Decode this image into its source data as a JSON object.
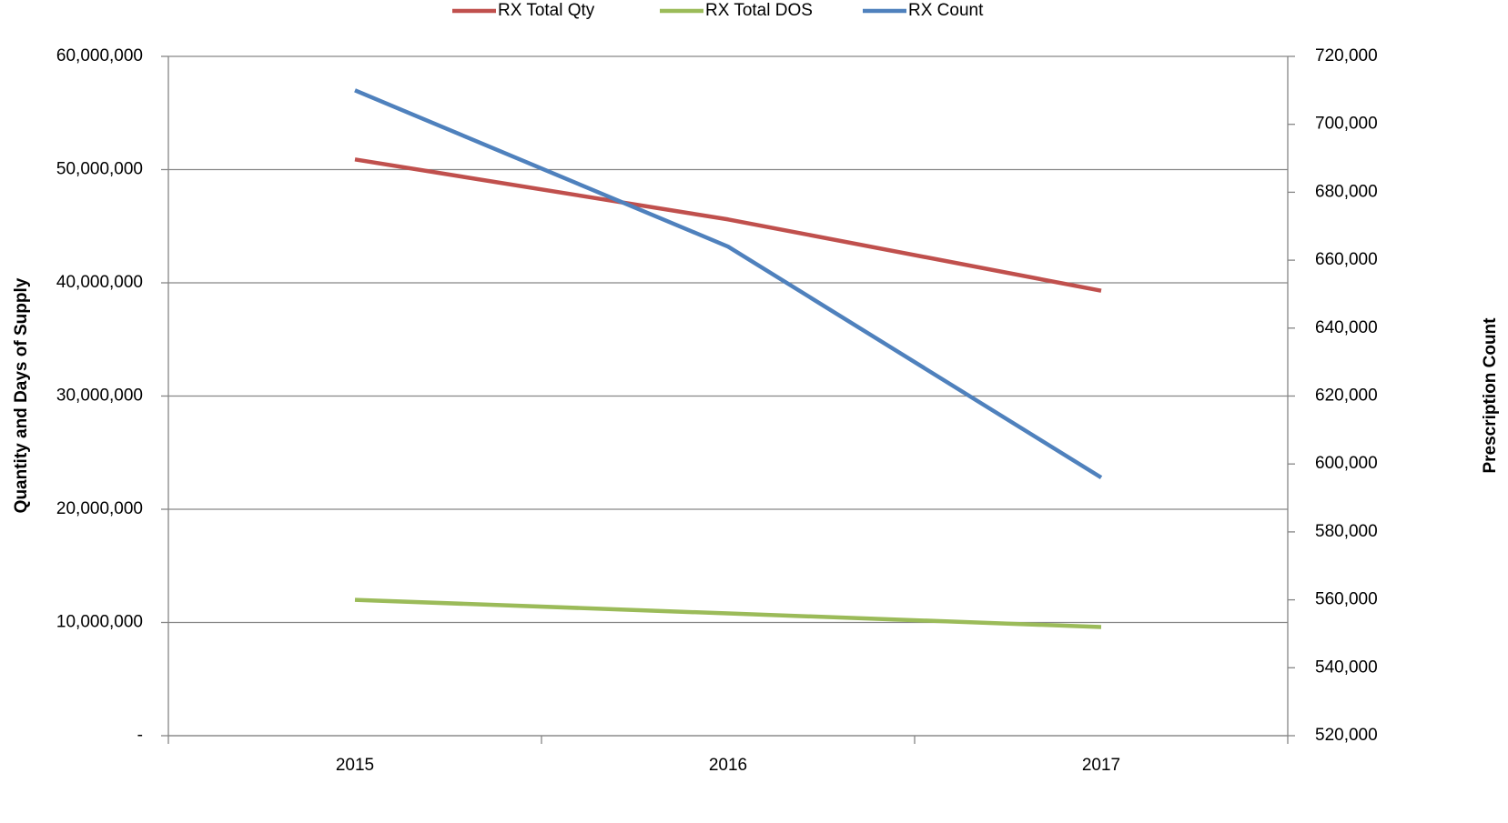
{
  "chart_data": {
    "type": "line",
    "categories": [
      "2015",
      "2016",
      "2017"
    ],
    "series": [
      {
        "name": "RX Total Qty",
        "color": "#c0504d",
        "values": [
          50900000,
          45600000,
          39300000
        ]
      },
      {
        "name": "RX Total DOS",
        "color": "#9bbb59",
        "values": [
          12000000,
          10800000,
          9600000
        ]
      },
      {
        "name": "RX Count",
        "color": "#4f81bd",
        "values": [
          710000,
          664000,
          596000
        ],
        "axis": "y2"
      }
    ],
    "ylabel": "Quantity and Days of Supply",
    "y2label": "Prescription Count",
    "ylim": [
      0,
      60000000
    ],
    "yticks": [
      {
        "value": 0,
        "label": "-"
      },
      {
        "value": 10000000,
        "label": "10,000,000"
      },
      {
        "value": 20000000,
        "label": "20,000,000"
      },
      {
        "value": 30000000,
        "label": "30,000,000"
      },
      {
        "value": 40000000,
        "label": "40,000,000"
      },
      {
        "value": 50000000,
        "label": "50,000,000"
      },
      {
        "value": 60000000,
        "label": "60,000,000"
      }
    ],
    "y2lim": [
      520000,
      720000
    ],
    "y2ticks": [
      {
        "value": 520000,
        "label": "520,000"
      },
      {
        "value": 540000,
        "label": "540,000"
      },
      {
        "value": 560000,
        "label": "560,000"
      },
      {
        "value": 580000,
        "label": "580,000"
      },
      {
        "value": 600000,
        "label": "600,000"
      },
      {
        "value": 620000,
        "label": "620,000"
      },
      {
        "value": 640000,
        "label": "640,000"
      },
      {
        "value": 660000,
        "label": "660,000"
      },
      {
        "value": 680000,
        "label": "680,000"
      },
      {
        "value": 700000,
        "label": "700,000"
      },
      {
        "value": 720000,
        "label": "720,000"
      }
    ],
    "grid": true,
    "legend": "top"
  }
}
